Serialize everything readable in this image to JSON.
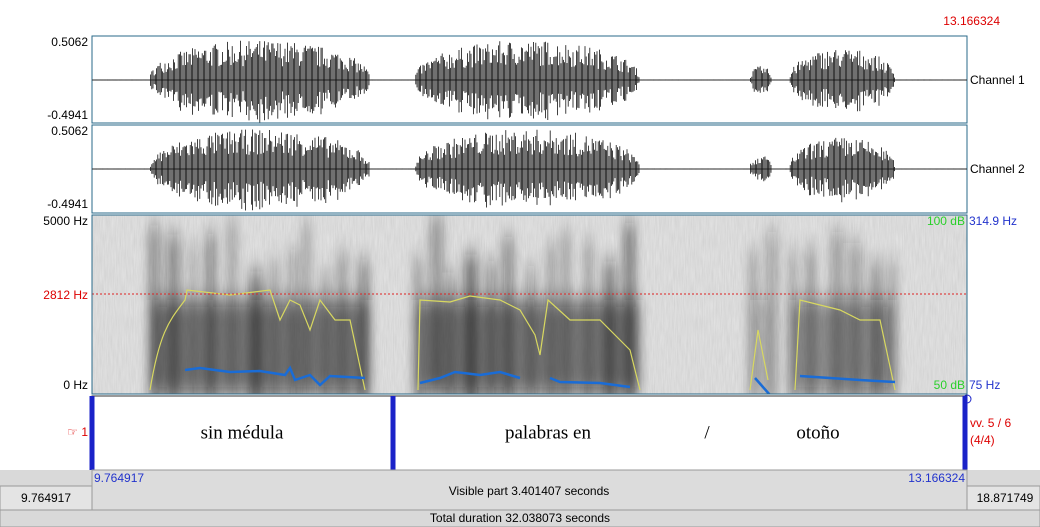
{
  "cursor_time": "13.166324",
  "channels": [
    {
      "max": "0.5062",
      "min": "-0.4941",
      "label": "Channel 1"
    },
    {
      "max": "0.5062",
      "min": "-0.4941",
      "label": "Channel 2"
    }
  ],
  "spectrogram": {
    "freq_max": "5000 Hz",
    "freq_mark": "2812 Hz",
    "freq_min": "0 Hz",
    "intensity_max": "100 dB",
    "intensity_min": "50 dB",
    "pitch_max": "314.9 Hz",
    "pitch_min": "75 Hz"
  },
  "tier": {
    "number": "☞ 1",
    "intervals": [
      "sin médula",
      "palabras en",
      "/",
      "otoño"
    ],
    "info": "vv. 5 / 6",
    "count": "(4/4)"
  },
  "time_bar": {
    "visible_start": "9.764917",
    "visible_end": "13.166324",
    "window_start": "9.764917",
    "window_end": "18.871749",
    "visible_part": "Visible part 3.401407 seconds",
    "total": "Total duration 32.038073 seconds"
  }
}
